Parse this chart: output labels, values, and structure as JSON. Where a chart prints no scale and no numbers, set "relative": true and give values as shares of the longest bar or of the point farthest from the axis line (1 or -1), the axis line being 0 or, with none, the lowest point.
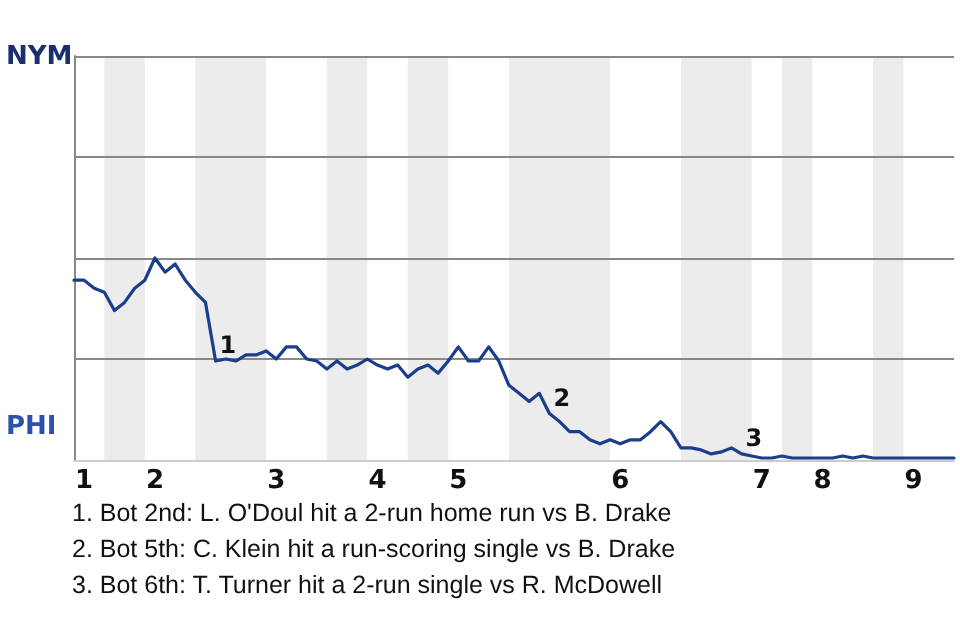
{
  "chart_data": {
    "type": "line",
    "relative": true,
    "categories": [
      null,
      "1",
      null,
      null,
      null,
      null,
      null,
      null,
      "2",
      null,
      null,
      null,
      null,
      null,
      null,
      null,
      null,
      null,
      null,
      null,
      "3",
      null,
      null,
      null,
      null,
      null,
      null,
      null,
      null,
      null,
      "4",
      null,
      null,
      null,
      null,
      null,
      null,
      null,
      "5",
      null,
      null,
      null,
      null,
      null,
      null,
      null,
      null,
      null,
      null,
      null,
      null,
      null,
      null,
      null,
      "6",
      null,
      null,
      null,
      null,
      null,
      null,
      null,
      null,
      null,
      null,
      null,
      null,
      null,
      "7",
      null,
      null,
      null,
      null,
      null,
      "8",
      null,
      null,
      null,
      null,
      null,
      null,
      null,
      null,
      "9",
      null,
      null,
      null,
      null
    ],
    "series": [
      {
        "color": "#1a3d8c",
        "values": [
          0.89,
          0.89,
          0.85,
          0.83,
          0.74,
          0.78,
          0.85,
          0.89,
          1,
          0.93,
          0.97,
          0.89,
          0.83,
          0.78,
          0.49,
          0.5,
          0.49,
          0.52,
          0.52,
          0.54,
          0.5,
          0.56,
          0.56,
          0.5,
          0.49,
          0.45,
          0.49,
          0.45,
          0.47,
          0.5,
          0.47,
          0.45,
          0.47,
          0.41,
          0.45,
          0.47,
          0.43,
          0.49,
          0.56,
          0.49,
          0.49,
          0.56,
          0.49,
          0.37,
          0.33,
          0.29,
          0.33,
          0.23,
          0.19,
          0.14,
          0.14,
          0.1,
          0.08,
          0.1,
          0.08,
          0.1,
          0.1,
          0.14,
          0.19,
          0.14,
          0.06,
          0.06,
          0.05,
          0.03,
          0.04,
          0.06,
          0.03,
          0.02,
          0.01,
          0.01,
          0.02,
          0.01,
          0.01,
          0.01,
          0.01,
          0.01,
          0.02,
          0.01,
          0.02,
          0.01,
          0.01,
          0.01,
          0.01,
          0.01,
          0.01,
          0.01,
          0.01,
          0.01
        ],
        "line_style": "solid"
      }
    ],
    "ref_lines": [
      {
        "axis": "y",
        "value": 0.5,
        "color": "#888888"
      },
      {
        "axis": "y",
        "value": 1,
        "color": "#888888"
      },
      {
        "axis": "y",
        "value": 1.5,
        "color": "#888888"
      },
      {
        "axis": "y",
        "value": 2,
        "color": "#888888"
      }
    ],
    "annotations": [
      "NYM",
      "PHI",
      "1",
      "2",
      "3",
      "1. Bot 2nd: L. O'Doul hit a 2-run home run vs B. Drake",
      "2. Bot 5th: C. Klein hit a run-scoring single vs B. Drake",
      "3. Bot 6th: T. Turner hit a 2-run single vs R. McDowell"
    ],
    "marker": "none"
  }
}
